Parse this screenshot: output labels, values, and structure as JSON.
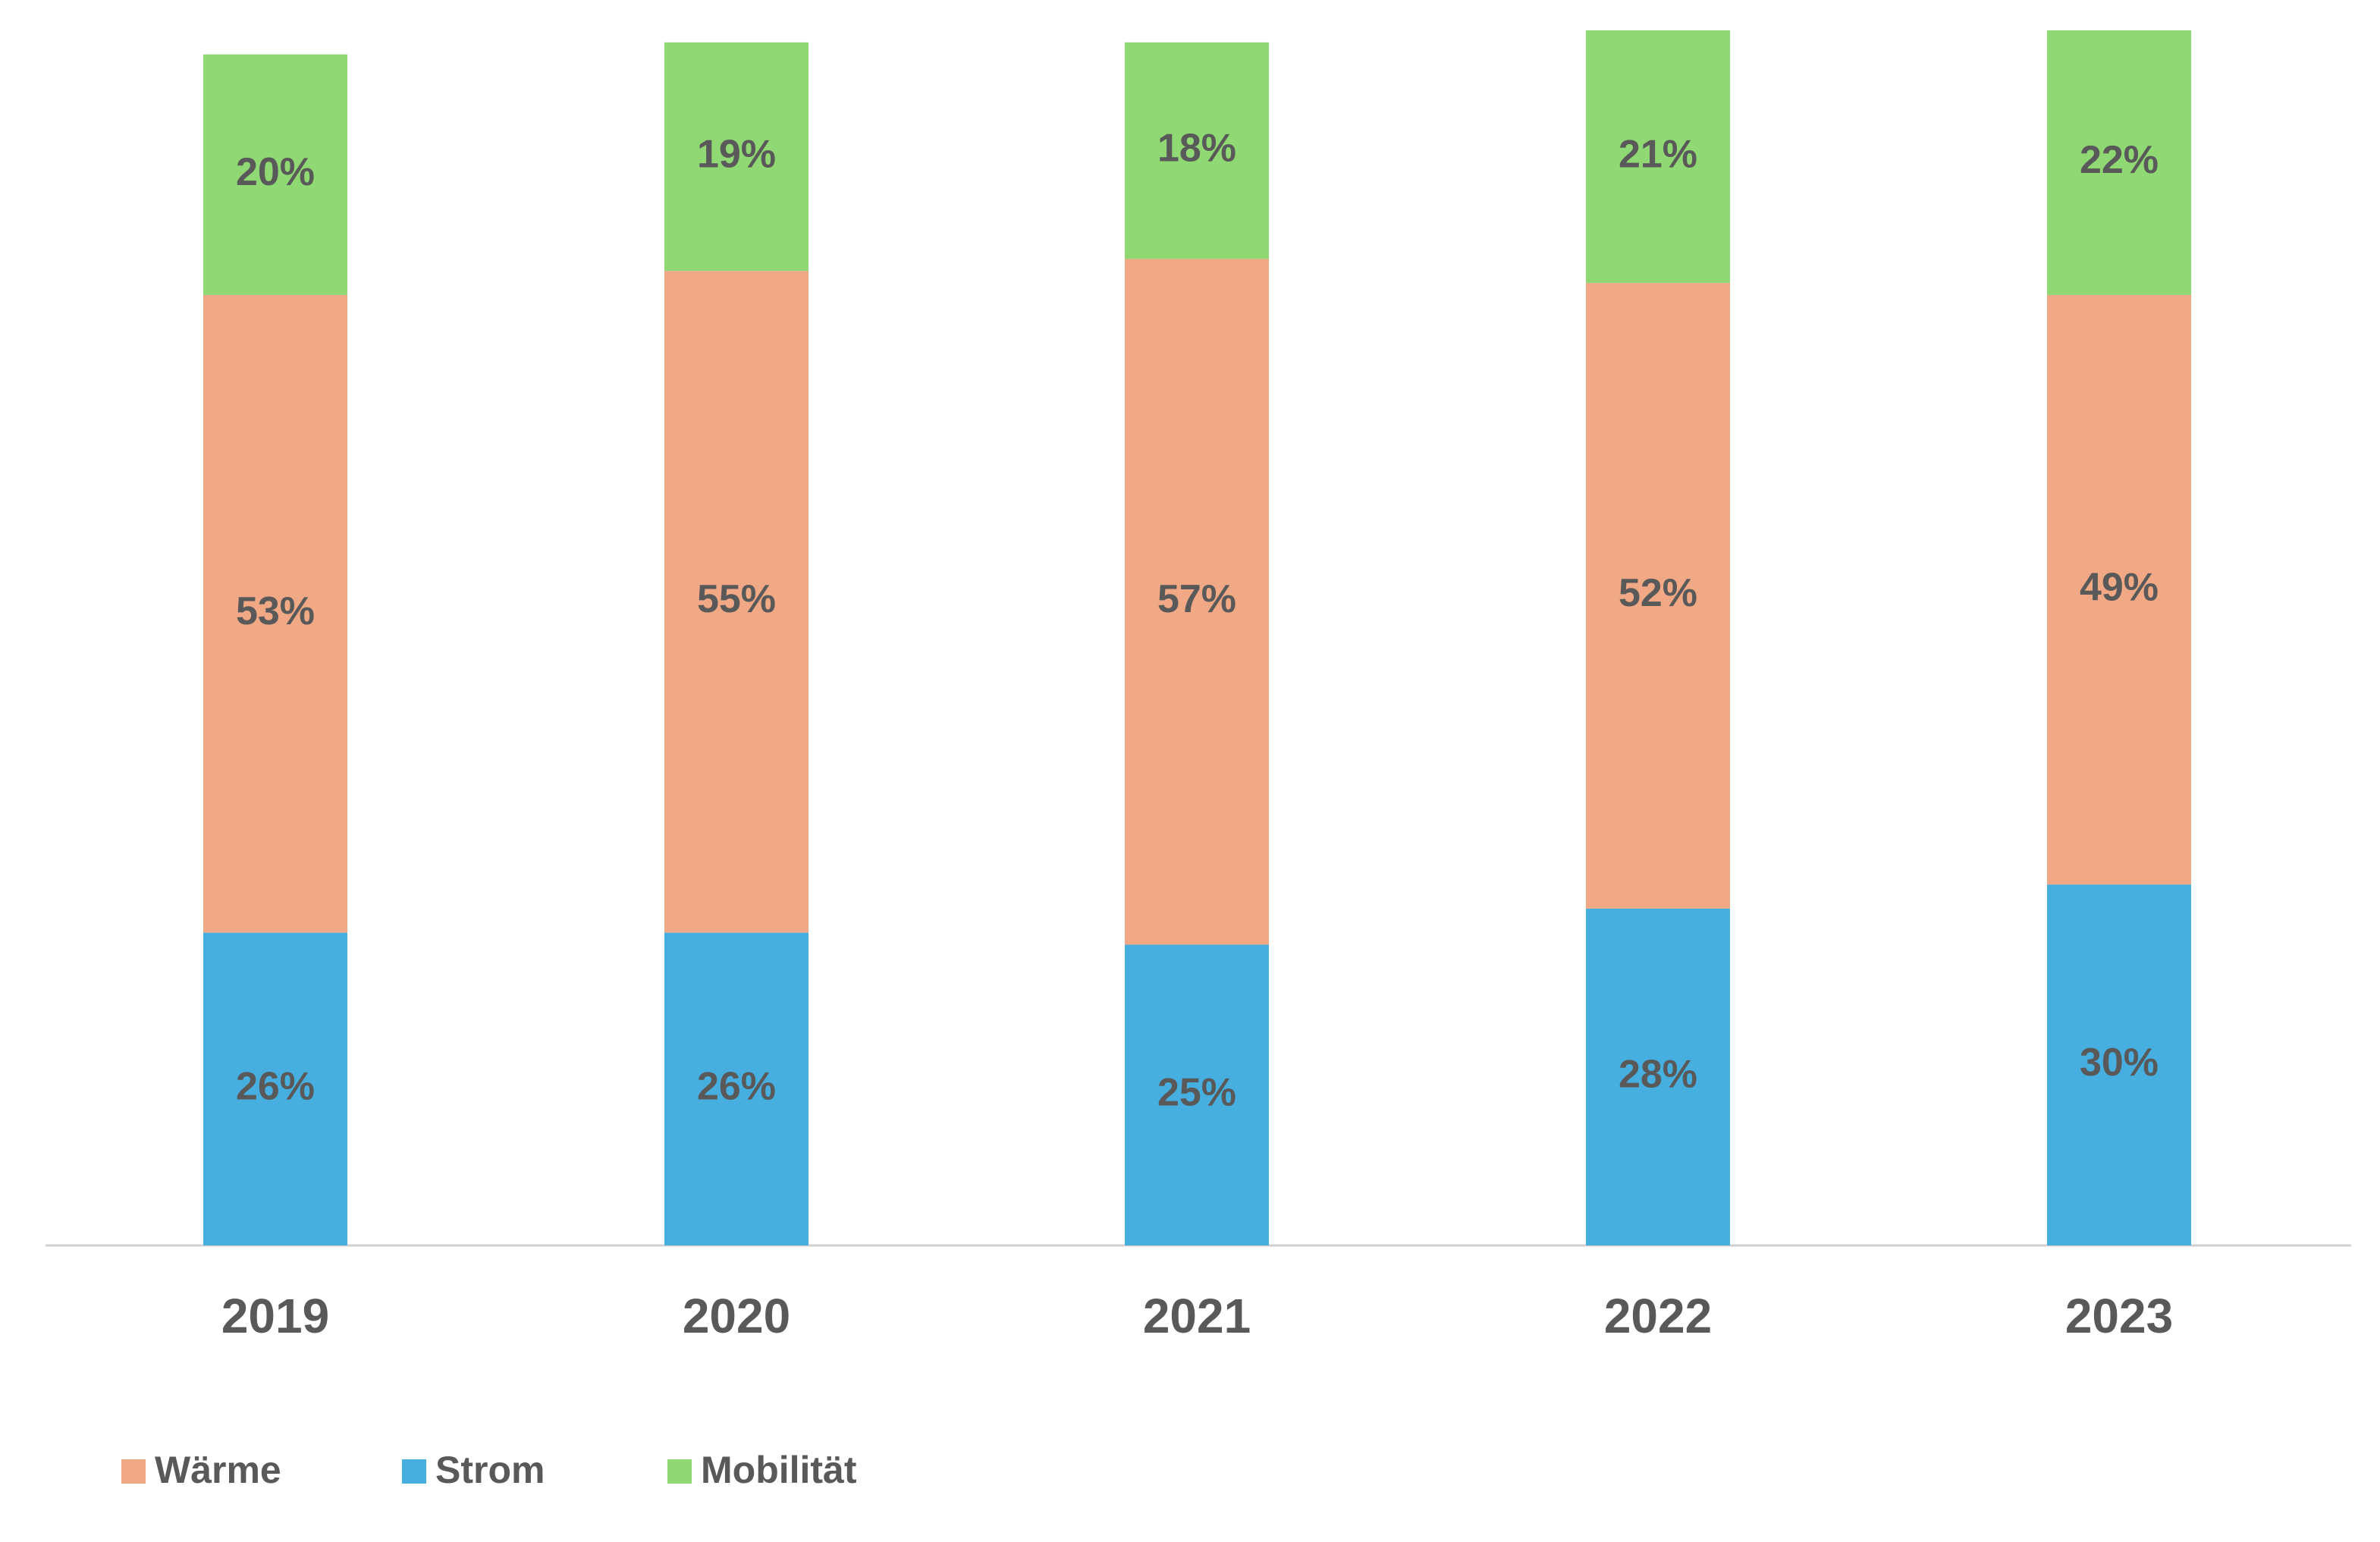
{
  "chart_data": {
    "type": "stacked_bar",
    "categories": [
      "2019",
      "2020",
      "2021",
      "2022",
      "2023"
    ],
    "series": [
      {
        "name": "Wärme",
        "color": "#f1a985",
        "values": [
          53,
          55,
          57,
          52,
          49
        ],
        "value_labels": [
          "53%",
          "55%",
          "57%",
          "52%",
          "49%"
        ]
      },
      {
        "name": "Strom",
        "color": "#47afe0",
        "values": [
          26,
          26,
          25,
          28,
          30
        ],
        "value_labels": [
          "26%",
          "26%",
          "25%",
          "28%",
          "30%"
        ]
      },
      {
        "name": "Mobilität",
        "color": "#8fd873",
        "values": [
          20,
          19,
          18,
          21,
          22
        ],
        "value_labels": [
          "20%",
          "19%",
          "18%",
          "21%",
          "22%"
        ]
      }
    ],
    "legend": "bottom-left"
  }
}
